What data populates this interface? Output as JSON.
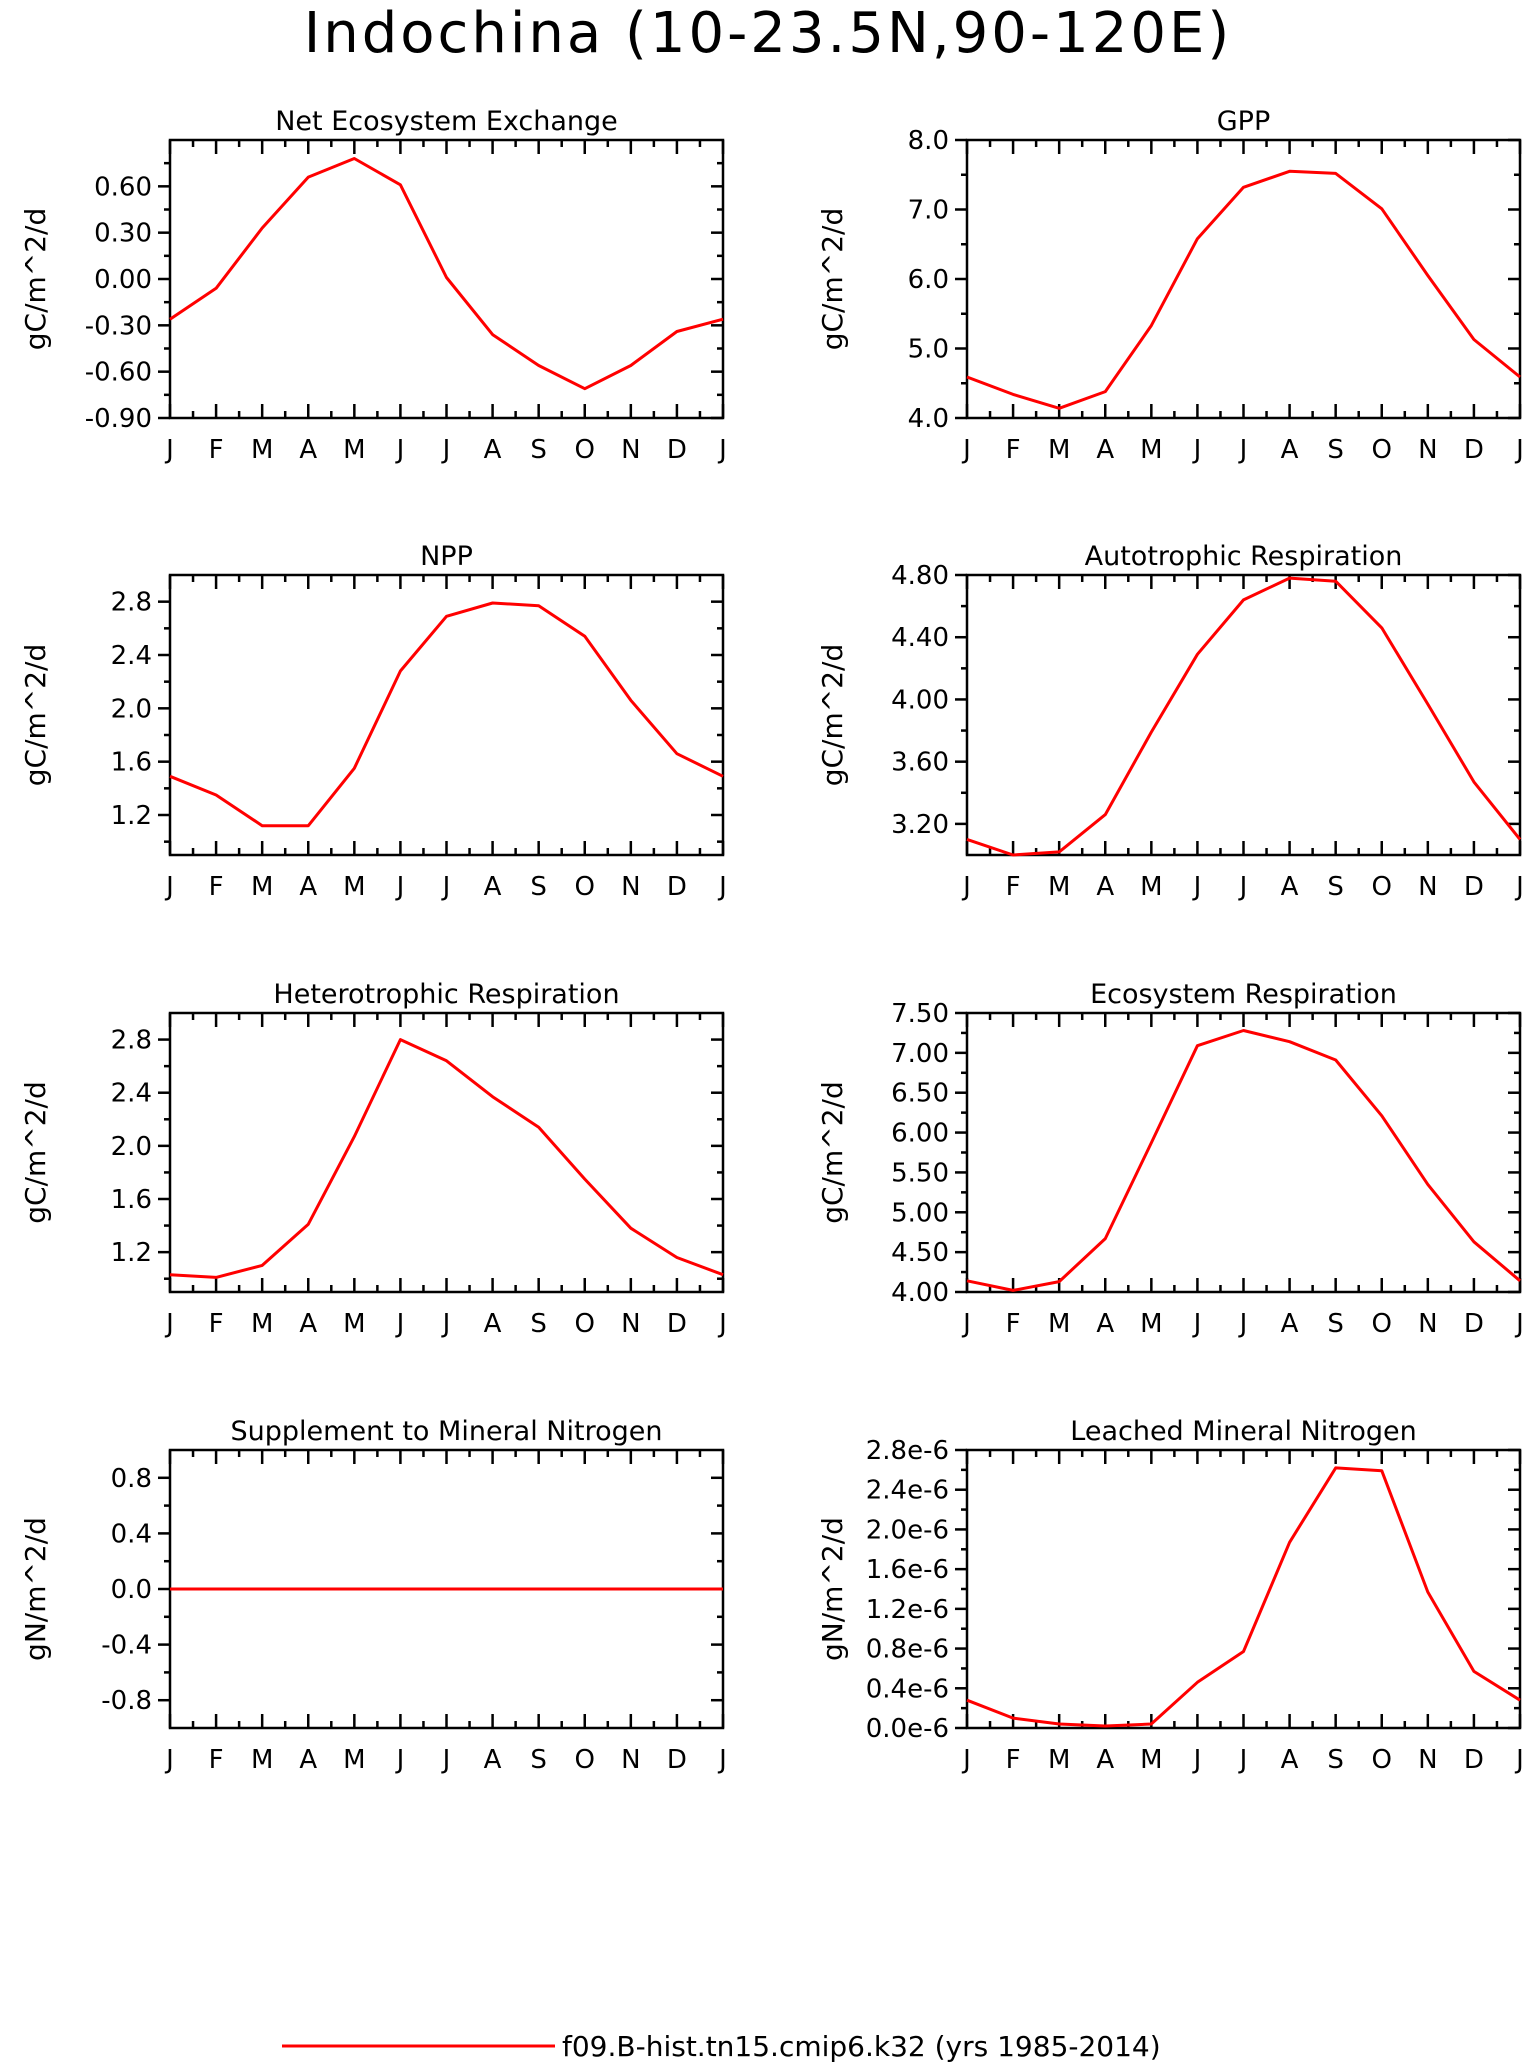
{
  "page": {
    "main_title": "Indochina (10-23.5N,90-120E)",
    "legend_label": "f09.B-hist.tn15.cmip6.k32 (yrs 1985-2014)",
    "series_color": "#ff0000"
  },
  "chart_data": [
    {
      "type": "line",
      "title": "Net Ecosystem Exchange",
      "ylabel": "gC/m^2/d",
      "categories": [
        "J",
        "F",
        "M",
        "A",
        "M",
        "J",
        "J",
        "A",
        "S",
        "O",
        "N",
        "D",
        "J"
      ],
      "ylim": [
        -0.9,
        0.9
      ],
      "yticks": [
        -0.9,
        -0.6,
        -0.3,
        0.0,
        0.3,
        0.6
      ],
      "ytick_labels": [
        "-0.90",
        "-0.60",
        "-0.30",
        "0.00",
        "0.30",
        "0.60"
      ],
      "series": [
        {
          "values": [
            -0.26,
            -0.06,
            0.33,
            0.66,
            0.78,
            0.61,
            0.01,
            -0.36,
            -0.56,
            -0.71,
            -0.56,
            -0.34,
            -0.26
          ]
        }
      ],
      "grid": false
    },
    {
      "type": "line",
      "title": "GPP",
      "ylabel": "gC/m^2/d",
      "categories": [
        "J",
        "F",
        "M",
        "A",
        "M",
        "J",
        "J",
        "A",
        "S",
        "O",
        "N",
        "D",
        "J"
      ],
      "ylim": [
        4.0,
        8.0
      ],
      "yticks": [
        4.0,
        5.0,
        6.0,
        7.0,
        8.0
      ],
      "ytick_labels": [
        "4.0",
        "5.0",
        "6.0",
        "7.0",
        "8.0"
      ],
      "series": [
        {
          "values": [
            4.59,
            4.34,
            4.14,
            4.38,
            5.33,
            6.58,
            7.32,
            7.55,
            7.52,
            7.01,
            6.05,
            5.13,
            4.59
          ]
        }
      ],
      "grid": false
    },
    {
      "type": "line",
      "title": "NPP",
      "ylabel": "gC/m^2/d",
      "categories": [
        "J",
        "F",
        "M",
        "A",
        "M",
        "J",
        "J",
        "A",
        "S",
        "O",
        "N",
        "D",
        "J"
      ],
      "ylim": [
        0.9,
        3.0
      ],
      "yticks": [
        1.2,
        1.6,
        2.0,
        2.4,
        2.8
      ],
      "ytick_labels": [
        "1.2",
        "1.6",
        "2.0",
        "2.4",
        "2.8"
      ],
      "series": [
        {
          "values": [
            1.49,
            1.35,
            1.12,
            1.12,
            1.55,
            2.28,
            2.69,
            2.79,
            2.77,
            2.54,
            2.06,
            1.66,
            1.49
          ]
        }
      ],
      "grid": false
    },
    {
      "type": "line",
      "title": "Autotrophic Respiration",
      "ylabel": "gC/m^2/d",
      "categories": [
        "J",
        "F",
        "M",
        "A",
        "M",
        "J",
        "J",
        "A",
        "S",
        "O",
        "N",
        "D",
        "J"
      ],
      "ylim": [
        3.0,
        4.8
      ],
      "yticks": [
        3.2,
        3.6,
        4.0,
        4.4,
        4.8
      ],
      "ytick_labels": [
        "3.20",
        "3.60",
        "4.00",
        "4.40",
        "4.80"
      ],
      "series": [
        {
          "values": [
            3.1,
            3.0,
            3.02,
            3.26,
            3.79,
            4.29,
            4.64,
            4.78,
            4.76,
            4.46,
            3.97,
            3.47,
            3.1
          ]
        }
      ],
      "grid": false
    },
    {
      "type": "line",
      "title": "Heterotrophic Respiration",
      "ylabel": "gC/m^2/d",
      "categories": [
        "J",
        "F",
        "M",
        "A",
        "M",
        "J",
        "J",
        "A",
        "S",
        "O",
        "N",
        "D",
        "J"
      ],
      "ylim": [
        0.9,
        3.0
      ],
      "yticks": [
        1.2,
        1.6,
        2.0,
        2.4,
        2.8
      ],
      "ytick_labels": [
        "1.2",
        "1.6",
        "2.0",
        "2.4",
        "2.8"
      ],
      "series": [
        {
          "values": [
            1.03,
            1.01,
            1.1,
            1.41,
            2.07,
            2.8,
            2.64,
            2.37,
            2.14,
            1.75,
            1.38,
            1.16,
            1.03
          ]
        }
      ],
      "grid": false
    },
    {
      "type": "line",
      "title": "Ecosystem Respiration",
      "ylabel": "gC/m^2/d",
      "categories": [
        "J",
        "F",
        "M",
        "A",
        "M",
        "J",
        "J",
        "A",
        "S",
        "O",
        "N",
        "D",
        "J"
      ],
      "ylim": [
        4.0,
        7.5
      ],
      "yticks": [
        4.0,
        4.5,
        5.0,
        5.5,
        6.0,
        6.5,
        7.0,
        7.5
      ],
      "ytick_labels": [
        "4.00",
        "4.50",
        "5.00",
        "5.50",
        "6.00",
        "6.50",
        "7.00",
        "7.50"
      ],
      "series": [
        {
          "values": [
            4.14,
            4.02,
            4.13,
            4.67,
            5.87,
            7.09,
            7.28,
            7.14,
            6.91,
            6.21,
            5.35,
            4.63,
            4.14
          ]
        }
      ],
      "grid": false
    },
    {
      "type": "line",
      "title": "Supplement to Mineral Nitrogen",
      "ylabel": "gN/m^2/d",
      "categories": [
        "J",
        "F",
        "M",
        "A",
        "M",
        "J",
        "J",
        "A",
        "S",
        "O",
        "N",
        "D",
        "J"
      ],
      "ylim": [
        -1.0,
        1.0
      ],
      "yticks": [
        -0.8,
        -0.4,
        0.0,
        0.4,
        0.8
      ],
      "ytick_labels": [
        "-0.8",
        "-0.4",
        "0.0",
        "0.4",
        "0.8"
      ],
      "series": [
        {
          "values": [
            0,
            0,
            0,
            0,
            0,
            0,
            0,
            0,
            0,
            0,
            0,
            0,
            0
          ]
        }
      ],
      "grid": false
    },
    {
      "type": "line",
      "title": "Leached Mineral Nitrogen",
      "ylabel": "gN/m^2/d",
      "categories": [
        "J",
        "F",
        "M",
        "A",
        "M",
        "J",
        "J",
        "A",
        "S",
        "O",
        "N",
        "D",
        "J"
      ],
      "ylim": [
        0.0,
        2.8e-06
      ],
      "yticks": [
        0.0,
        4e-07,
        8e-07,
        1.2e-06,
        1.6e-06,
        2e-06,
        2.4e-06,
        2.8e-06
      ],
      "ytick_labels": [
        "0.0e-6",
        "0.4e-6",
        "0.8e-6",
        "1.2e-6",
        "1.6e-6",
        "2.0e-6",
        "2.4e-6",
        "2.8e-6"
      ],
      "series": [
        {
          "values": [
            2.8e-07,
            1e-07,
            4e-08,
            2e-08,
            4e-08,
            4.6e-07,
            7.7e-07,
            1.87e-06,
            2.62e-06,
            2.59e-06,
            1.37e-06,
            5.7e-07,
            2.8e-07
          ]
        }
      ],
      "grid": false
    }
  ]
}
